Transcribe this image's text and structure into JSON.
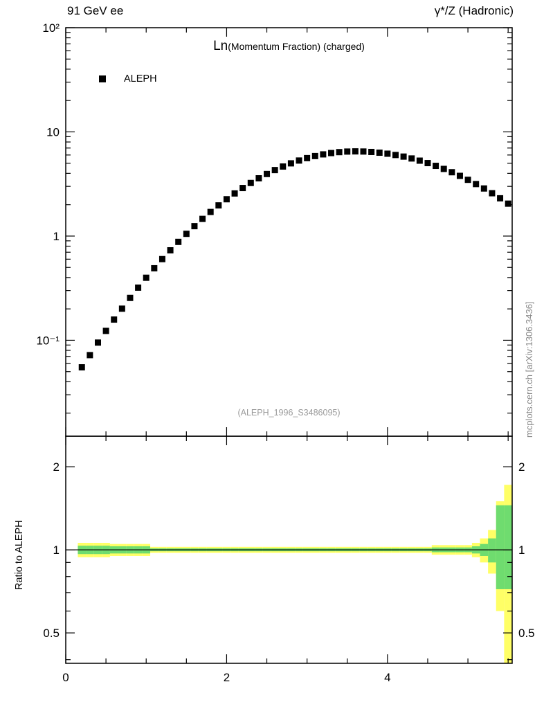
{
  "header": {
    "left": "91 GeV ee",
    "right": "γ*/Z (Hadronic)"
  },
  "side_note": "mcplots.cern.ch [arXiv:1306.3436]",
  "chart_data": {
    "type": "scatter",
    "title_main": "Ln",
    "title_sub": "(Momentum Fraction) (charged)",
    "watermark": "(ALEPH_1996_S3486095)",
    "legend": [
      {
        "label": "ALEPH",
        "marker": "filled-square",
        "color": "#000000"
      }
    ],
    "xlim": [
      0,
      5.55
    ],
    "main_ylim": [
      0.012,
      100
    ],
    "main_yscale": "log",
    "x_ticks": [
      {
        "v": 0,
        "label": "0"
      },
      {
        "v": 2,
        "label": "2"
      },
      {
        "v": 4,
        "label": "4"
      }
    ],
    "main_y_ticks": [
      {
        "v": 100,
        "label": "10²"
      },
      {
        "v": 10,
        "label": "10"
      },
      {
        "v": 1,
        "label": "1"
      },
      {
        "v": 0.1,
        "label": "10⁻¹"
      }
    ],
    "series": [
      {
        "name": "ALEPH",
        "marker": "filled-square",
        "color": "#000000",
        "x": [
          0.2,
          0.3,
          0.4,
          0.5,
          0.6,
          0.7,
          0.8,
          0.9,
          1.0,
          1.1,
          1.2,
          1.3,
          1.4,
          1.5,
          1.6,
          1.7,
          1.8,
          1.9,
          2.0,
          2.1,
          2.2,
          2.3,
          2.4,
          2.5,
          2.6,
          2.7,
          2.8,
          2.9,
          3.0,
          3.1,
          3.2,
          3.3,
          3.4,
          3.5,
          3.6,
          3.7,
          3.8,
          3.9,
          4.0,
          4.1,
          4.2,
          4.3,
          4.4,
          4.5,
          4.6,
          4.7,
          4.8,
          4.9,
          5.0,
          5.1,
          5.2,
          5.3,
          5.4,
          5.5
        ],
        "y": [
          0.055,
          0.072,
          0.095,
          0.123,
          0.158,
          0.201,
          0.255,
          0.32,
          0.398,
          0.491,
          0.601,
          0.73,
          0.88,
          1.051,
          1.245,
          1.462,
          1.704,
          1.97,
          2.257,
          2.565,
          2.892,
          3.234,
          3.585,
          3.942,
          4.3,
          4.65,
          4.99,
          5.309,
          5.601,
          5.862,
          6.084,
          6.263,
          6.393,
          6.473,
          6.5,
          6.479,
          6.417,
          6.315,
          6.176,
          6.0,
          5.793,
          5.557,
          5.296,
          5.017,
          4.72,
          4.412,
          4.1,
          3.784,
          3.467,
          3.157,
          2.863,
          2.578,
          2.305,
          2.047
        ]
      }
    ],
    "ratio": {
      "ylabel": "Ratio to ALEPH",
      "yscale": "log",
      "ylim": [
        0.388,
        2.58
      ],
      "line_value": 1,
      "y_ticks": [
        {
          "v": 2,
          "label": "2"
        },
        {
          "v": 1,
          "label": "1"
        },
        {
          "v": 0.5,
          "label": "0.5"
        }
      ],
      "band_colors": {
        "outer": "#ffff66",
        "inner": "#6fdc6f"
      },
      "bin_half_width": 0.05,
      "outer_lo": [
        0.94,
        0.94,
        0.94,
        0.94,
        0.95,
        0.95,
        0.95,
        0.95,
        0.95,
        0.975,
        0.975,
        0.975,
        0.975,
        0.975,
        0.975,
        0.975,
        0.975,
        0.975,
        0.975,
        0.975,
        0.975,
        0.975,
        0.975,
        0.975,
        0.975,
        0.975,
        0.975,
        0.975,
        0.975,
        0.975,
        0.975,
        0.975,
        0.975,
        0.975,
        0.975,
        0.975,
        0.975,
        0.975,
        0.975,
        0.975,
        0.975,
        0.975,
        0.975,
        0.975,
        0.96,
        0.96,
        0.96,
        0.96,
        0.96,
        0.94,
        0.9,
        0.82,
        0.6,
        0.35
      ],
      "outer_hi": [
        1.06,
        1.06,
        1.06,
        1.06,
        1.05,
        1.05,
        1.05,
        1.05,
        1.05,
        1.025,
        1.025,
        1.025,
        1.025,
        1.025,
        1.025,
        1.025,
        1.025,
        1.025,
        1.025,
        1.025,
        1.025,
        1.025,
        1.025,
        1.025,
        1.025,
        1.025,
        1.025,
        1.025,
        1.025,
        1.025,
        1.025,
        1.025,
        1.025,
        1.025,
        1.025,
        1.025,
        1.025,
        1.025,
        1.025,
        1.025,
        1.025,
        1.025,
        1.025,
        1.025,
        1.04,
        1.04,
        1.04,
        1.04,
        1.04,
        1.06,
        1.1,
        1.18,
        1.5,
        1.72
      ],
      "inner_lo": [
        0.965,
        0.965,
        0.965,
        0.965,
        0.97,
        0.97,
        0.97,
        0.97,
        0.97,
        0.988,
        0.988,
        0.988,
        0.988,
        0.988,
        0.988,
        0.988,
        0.988,
        0.988,
        0.988,
        0.988,
        0.988,
        0.988,
        0.988,
        0.988,
        0.988,
        0.988,
        0.988,
        0.988,
        0.988,
        0.988,
        0.988,
        0.988,
        0.988,
        0.988,
        0.988,
        0.988,
        0.988,
        0.988,
        0.988,
        0.988,
        0.988,
        0.988,
        0.988,
        0.988,
        0.98,
        0.98,
        0.98,
        0.98,
        0.98,
        0.97,
        0.95,
        0.9,
        0.72,
        0.72
      ],
      "inner_hi": [
        1.035,
        1.035,
        1.035,
        1.035,
        1.03,
        1.03,
        1.03,
        1.03,
        1.03,
        1.012,
        1.012,
        1.012,
        1.012,
        1.012,
        1.012,
        1.012,
        1.012,
        1.012,
        1.012,
        1.012,
        1.012,
        1.012,
        1.012,
        1.012,
        1.012,
        1.012,
        1.012,
        1.012,
        1.012,
        1.012,
        1.012,
        1.012,
        1.012,
        1.012,
        1.012,
        1.012,
        1.012,
        1.012,
        1.012,
        1.012,
        1.012,
        1.012,
        1.012,
        1.012,
        1.02,
        1.02,
        1.02,
        1.02,
        1.02,
        1.03,
        1.05,
        1.1,
        1.45,
        1.45
      ]
    }
  }
}
